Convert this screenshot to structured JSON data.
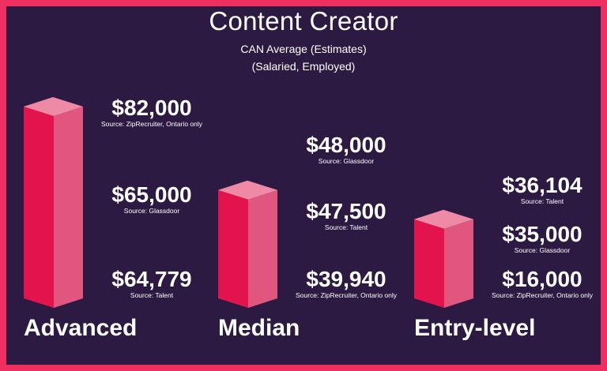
{
  "title": "Content Creator",
  "subtitle_line1": "CAN Average (Estimates)",
  "subtitle_line2": "(Salaried, Employed)",
  "colors": {
    "background": "#2d1a42",
    "border": "#ef2f5f",
    "bar_front": "#e3134e",
    "bar_side": "#e0567f",
    "bar_top": "#ef8aa6",
    "text": "#ffffff"
  },
  "chart_data": {
    "type": "bar",
    "style": "3d-column",
    "title": "Content Creator",
    "subtitle": "CAN Average (Estimates) (Salaried, Employed)",
    "categories": [
      "Advanced",
      "Median",
      "Entry-level"
    ],
    "groups": [
      {
        "category": "Advanced",
        "bar_value": 82000,
        "labels": [
          {
            "value": "$82,000",
            "source": "Source: ZipRecruiter, Ontario only"
          },
          {
            "value": "$65,000",
            "source": "Source: Glassdoor"
          },
          {
            "value": "$64,779",
            "source": "Source: Talent"
          }
        ]
      },
      {
        "category": "Median",
        "bar_value": 48000,
        "labels": [
          {
            "value": "$48,000",
            "source": "Source: Glassdoor"
          },
          {
            "value": "$47,500",
            "source": "Source: Talent"
          },
          {
            "value": "$39,940",
            "source": "Source: ZipRecruiter, Ontario only"
          }
        ]
      },
      {
        "category": "Entry-level",
        "bar_value": 36104,
        "labels": [
          {
            "value": "$36,104",
            "source": "Source: Talent"
          },
          {
            "value": "$35,000",
            "source": "Source: Glassdoor"
          },
          {
            "value": "$16,000",
            "source": "Source: ZipRecruiter, Ontario only"
          }
        ]
      }
    ],
    "grid": false,
    "legend": "none"
  }
}
